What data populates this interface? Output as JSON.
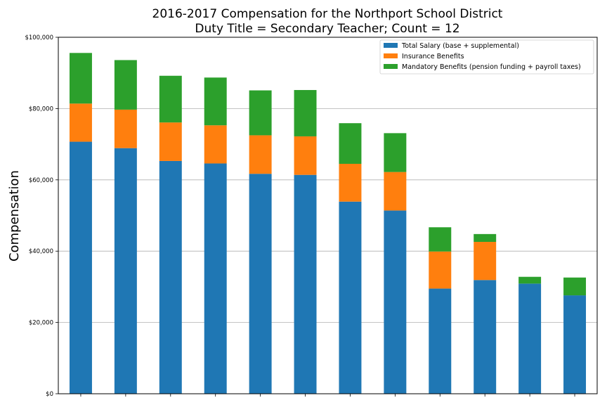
{
  "chart_data": {
    "type": "bar",
    "stacked": true,
    "title": [
      "2016-2017 Compensation for the Northport School District",
      "Duty Title = Secondary Teacher; Count = 12"
    ],
    "ylabel": "Compensation",
    "xlabel": "",
    "ylim": [
      0,
      100000
    ],
    "yticks": [
      0,
      20000,
      40000,
      60000,
      80000,
      100000
    ],
    "ytick_labels": [
      "$0",
      "$20,000",
      "$40,000",
      "$60,000",
      "$80,000",
      "$100,000"
    ],
    "grid": "horizontal",
    "legend_position": "top-right",
    "series": [
      {
        "name": "Total Salary (base + supplemental)",
        "color": "#1f77b4",
        "values": [
          70700,
          68900,
          65300,
          64600,
          61700,
          61400,
          53900,
          51400,
          29500,
          31900,
          30900,
          27600
        ]
      },
      {
        "name": "Insurance Benefits",
        "color": "#ff7f0e",
        "values": [
          10700,
          10800,
          10800,
          10700,
          10800,
          10800,
          10600,
          10800,
          10400,
          10700,
          0,
          0
        ]
      },
      {
        "name": "Mandatory Benefits (pension funding + payroll taxes)",
        "color": "#2ca02c",
        "values": [
          14200,
          13900,
          13100,
          13400,
          12600,
          13000,
          11400,
          10900,
          6800,
          2200,
          1900,
          5000
        ]
      }
    ]
  }
}
